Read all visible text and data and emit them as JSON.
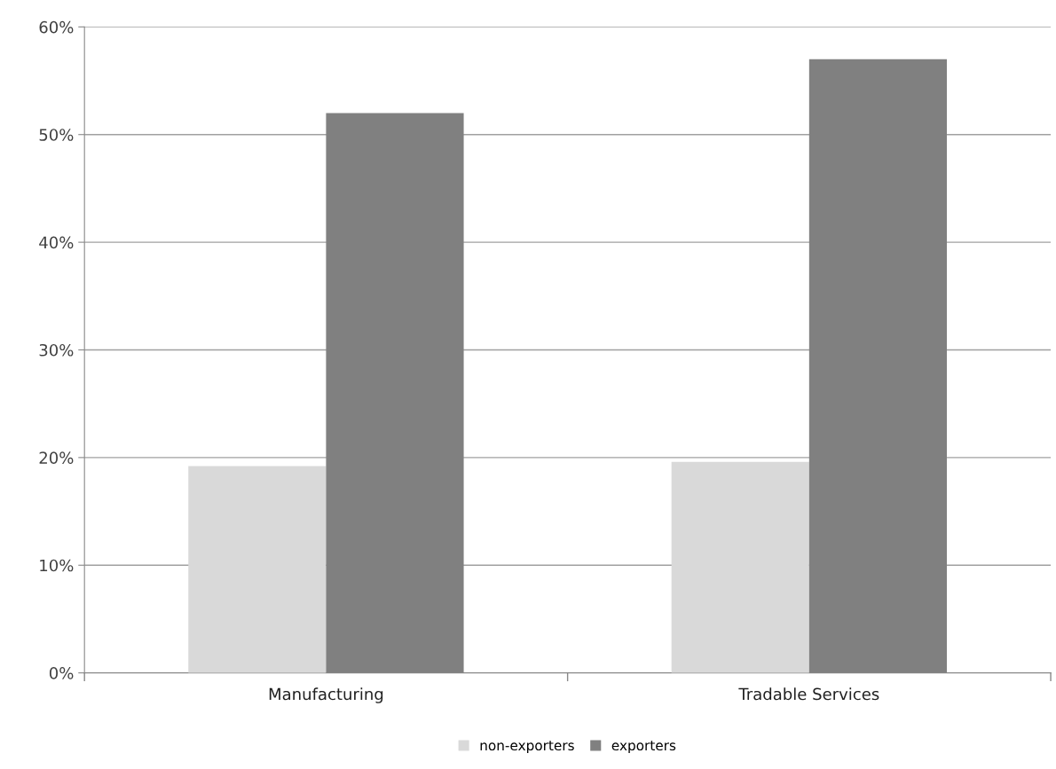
{
  "chart_data": {
    "type": "bar",
    "categories": [
      "Manufacturing",
      "Tradable Services"
    ],
    "series": [
      {
        "name": "non-exporters",
        "color": "#d9d9d9",
        "values": [
          19.2,
          19.6
        ]
      },
      {
        "name": "exporters",
        "color": "#808080",
        "values": [
          52,
          57
        ]
      }
    ],
    "ylim": [
      0,
      60
    ],
    "yticks": [
      {
        "value": 0,
        "label": "0%"
      },
      {
        "value": 10,
        "label": "10%"
      },
      {
        "value": 20,
        "label": "20%"
      },
      {
        "value": 30,
        "label": "30%"
      },
      {
        "value": 40,
        "label": "40%"
      },
      {
        "value": 50,
        "label": "50%"
      },
      {
        "value": 60,
        "label": "60%"
      }
    ],
    "grid": "y",
    "legend": "bottom"
  }
}
